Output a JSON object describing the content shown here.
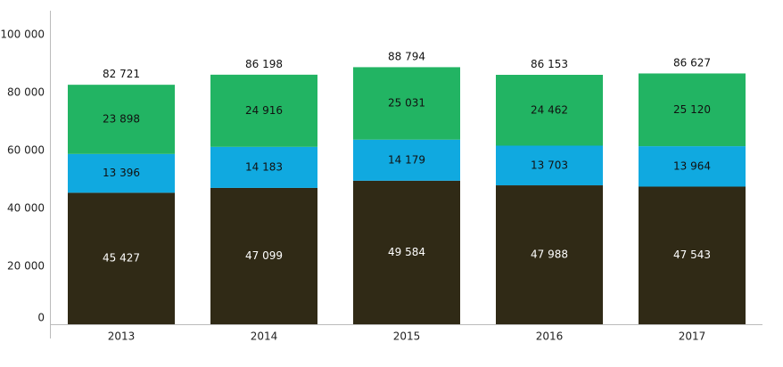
{
  "chart_data": {
    "type": "bar",
    "stacked": true,
    "categories": [
      "2013",
      "2014",
      "2015",
      "2016",
      "2017"
    ],
    "series": [
      {
        "values": [
          45427,
          47099,
          49584,
          47988,
          47543
        ],
        "labels": [
          "45 427",
          "47 099",
          "49 584",
          "47 988",
          "47 543"
        ],
        "color": "#302a16",
        "label_color": "#ffffff"
      },
      {
        "values": [
          13396,
          14183,
          14179,
          13703,
          13964
        ],
        "labels": [
          "13 396",
          "14 183",
          "14 179",
          "13 703",
          "13 964"
        ],
        "color": "#10a9e0",
        "label_color": "#111111"
      },
      {
        "values": [
          23898,
          24916,
          25031,
          24462,
          25120
        ],
        "labels": [
          "23 898",
          "24 916",
          "25 031",
          "24 462",
          "25 120"
        ],
        "color": "#22b463",
        "label_color": "#111111"
      }
    ],
    "totals": [
      82721,
      86198,
      88794,
      86153,
      86627
    ],
    "total_labels": [
      "82 721",
      "86 198",
      "88 794",
      "86 153",
      "86 627"
    ],
    "yticks": [
      0,
      20000,
      40000,
      60000,
      80000,
      100000
    ],
    "ytick_labels": [
      "0",
      "20 000",
      "40 000",
      "60 000",
      "80 000",
      "100 000"
    ],
    "ylim": [
      0,
      100000
    ],
    "grid": false,
    "legend": "none",
    "axis_color": "#bbbbbb"
  }
}
